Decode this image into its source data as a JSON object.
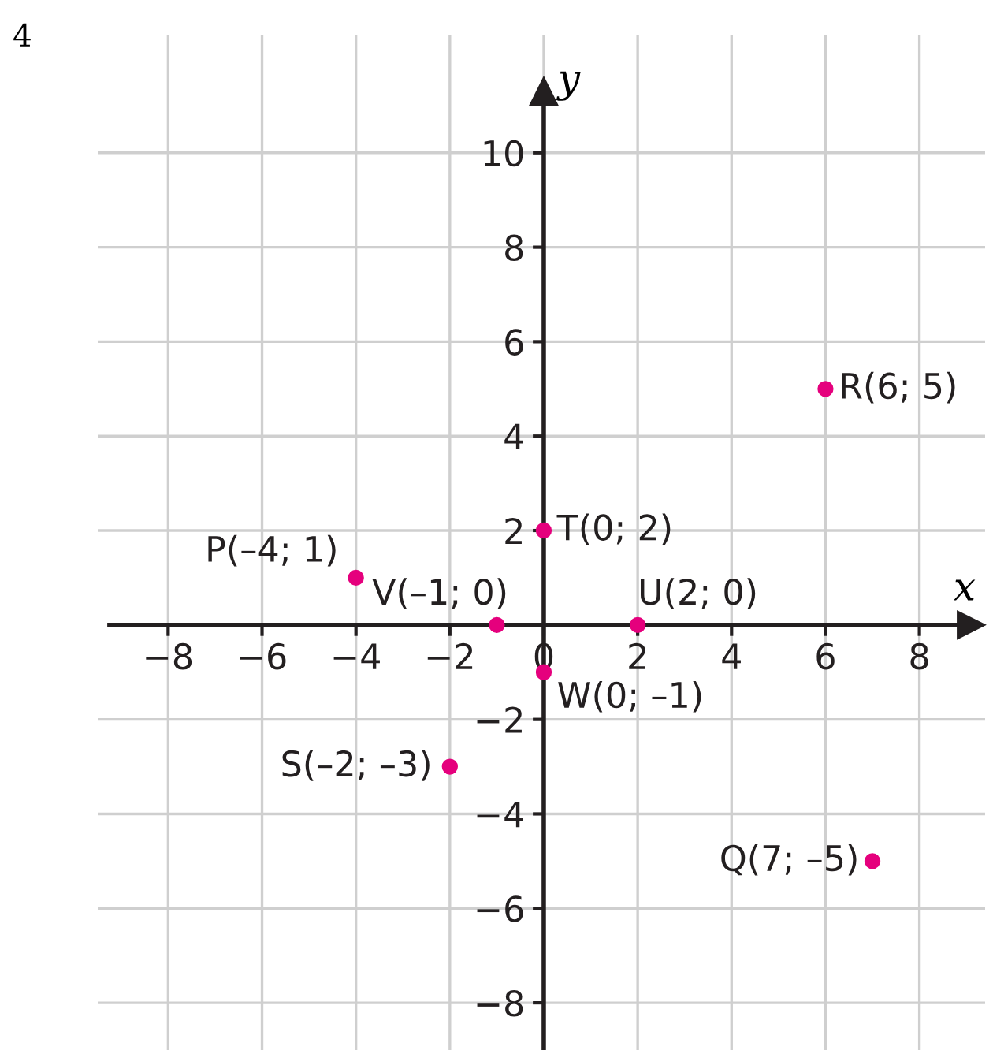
{
  "chart_data": {
    "type": "scatter",
    "x": [
      6,
      7,
      -4,
      -2,
      0,
      2,
      -1,
      0
    ],
    "values": [
      5,
      -5,
      1,
      -3,
      2,
      0,
      0,
      -1
    ],
    "color": "#e5007d",
    "marker": "circle",
    "xlabel": "x",
    "ylabel": "y",
    "xlim": [
      -9.5,
      9.4
    ],
    "ylim": [
      -9,
      12.5
    ],
    "xticks": [
      -8,
      -6,
      -4,
      -2,
      0,
      2,
      4,
      6,
      8
    ],
    "yticks": [
      -8,
      -6,
      -4,
      -2,
      2,
      4,
      6,
      8,
      10
    ],
    "grid": true,
    "annotations": [
      {
        "text": "R(6; 5)",
        "x": 6,
        "y": 5
      },
      {
        "text": "Q(7; –5)",
        "x": 7,
        "y": -5
      },
      {
        "text": "P(–4; 1)",
        "x": -4,
        "y": 1
      },
      {
        "text": "S(–2; –3)",
        "x": -2,
        "y": -3
      },
      {
        "text": "T(0; 2)",
        "x": 0,
        "y": 2
      },
      {
        "text": "U(2; 0)",
        "x": 2,
        "y": 0
      },
      {
        "text": "V(–1; 0)",
        "x": -1,
        "y": 0
      },
      {
        "text": "W(0; –1)",
        "x": 0,
        "y": -1
      },
      "4"
    ]
  }
}
